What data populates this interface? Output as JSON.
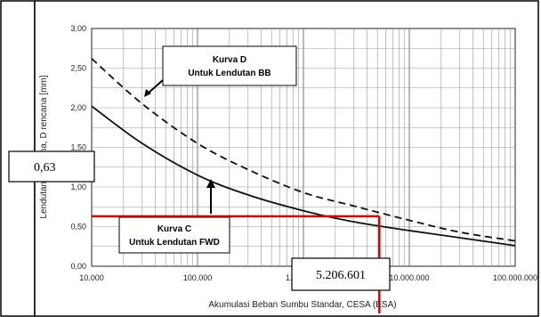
{
  "chart_data": {
    "type": "line",
    "xscale": "log",
    "xlim": [
      10000,
      100000000
    ],
    "ylim": [
      0,
      3
    ],
    "grid": true,
    "xlabel": "Akumulasi Beban Sumbu Standar, CESA (ESA)",
    "ylabel": "Lendutan Rencana, D rencana [mm]",
    "yticks": [
      "0,00",
      "0,50",
      "1,00",
      "1,50",
      "2,00",
      "2,50",
      "3,00"
    ],
    "xticks": [
      "10.000",
      "100.000",
      "1.000.000",
      "10.000.000",
      "100.000.000"
    ],
    "series": [
      {
        "name": "Kurva C Untuk Lendutan FWD",
        "style": "solid",
        "x": [
          10000,
          30000,
          100000,
          300000,
          1000000,
          3000000,
          10000000,
          30000000,
          100000000
        ],
        "y": [
          2.02,
          1.55,
          1.15,
          0.9,
          0.7,
          0.56,
          0.45,
          0.36,
          0.26
        ]
      },
      {
        "name": "Kurva D Untuk Lendutan BB",
        "style": "dashed",
        "x": [
          10000,
          30000,
          100000,
          300000,
          1000000,
          3000000,
          10000000,
          30000000,
          100000000
        ],
        "y": [
          2.62,
          2.05,
          1.55,
          1.22,
          0.93,
          0.76,
          0.58,
          0.43,
          0.32
        ]
      }
    ],
    "annotations": {
      "curve_d": {
        "line1": "Kurva D",
        "line2": "Untuk Lendutan BB"
      },
      "curve_c": {
        "line1": "Kurva C",
        "line2": "Untuk Lendutan FWD"
      },
      "y_readout": "0,63",
      "x_readout": "5.206.601",
      "marker_x": 5206601,
      "marker_y": 0.63
    }
  }
}
